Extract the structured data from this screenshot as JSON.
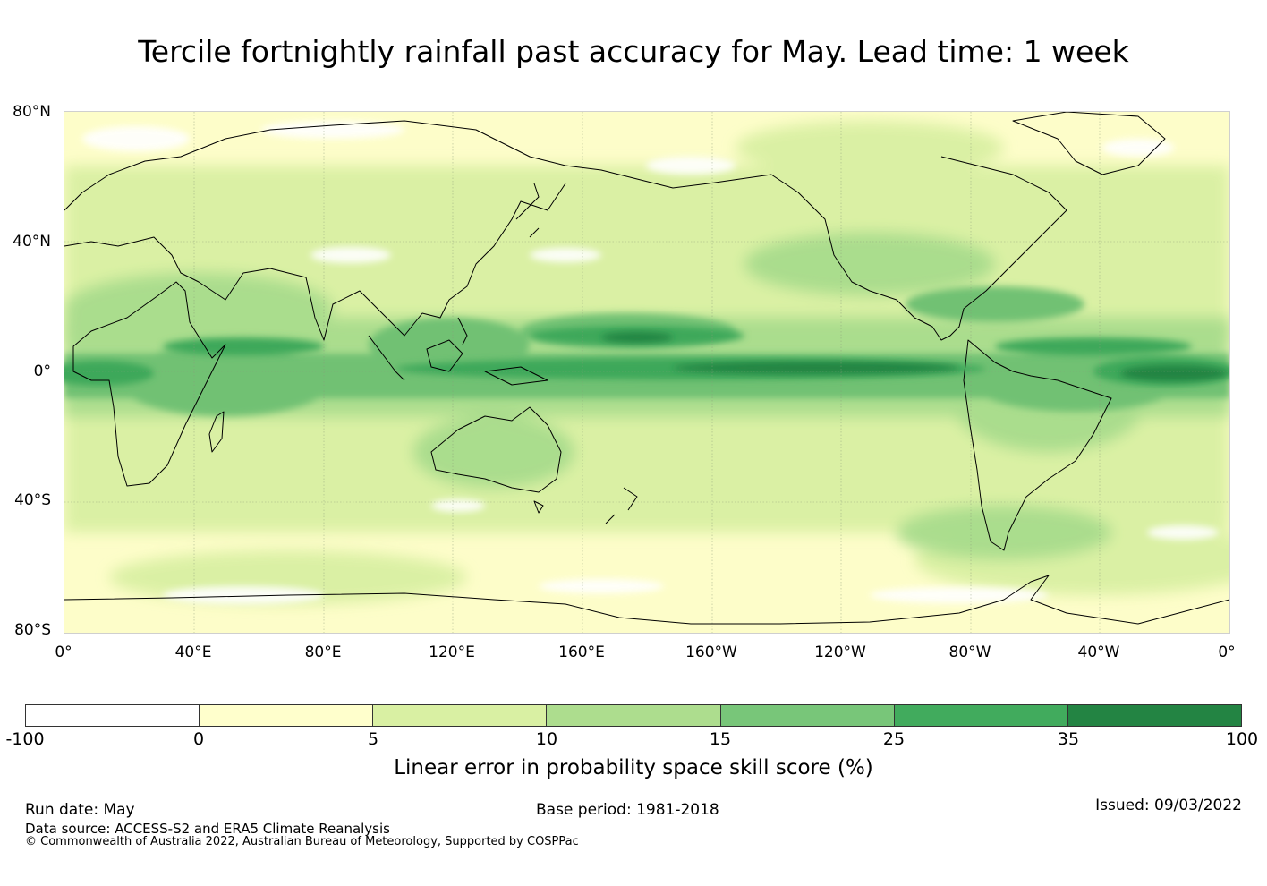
{
  "title": "Tercile fortnightly rainfall past accuracy for May. Lead time: 1 week",
  "map": {
    "lat_labels": [
      "80°N",
      "40°N",
      "0°",
      "40°S",
      "80°S"
    ],
    "lon_labels": [
      "0°",
      "40°E",
      "80°E",
      "120°E",
      "160°E",
      "160°W",
      "120°W",
      "80°W",
      "40°W",
      "0°"
    ],
    "colors": {
      "ocean_base": "#fdfdc9",
      "low": "#d7efa0",
      "mid": "#a8dc8c",
      "high": "#71c173",
      "very_high": "#3ea85a",
      "max": "#238443",
      "coast": "#000000"
    }
  },
  "colorbar": {
    "ticks": [
      "-100",
      "0",
      "5",
      "10",
      "15",
      "25",
      "35",
      "100"
    ],
    "colors": [
      "#ffffff",
      "#ffffcc",
      "#d9f0a3",
      "#addd8e",
      "#78c679",
      "#41ab5d",
      "#238443"
    ],
    "label": "Linear error in probability space skill score (%)"
  },
  "footer": {
    "run_date": "Run date: May",
    "base_period": "Base period: 1981-2018",
    "issued": "Issued: 09/03/2022",
    "data_source": "Data source: ACCESS-S2 and ERA5 Climate Reanalysis",
    "copyright": "© Commonwealth of Australia 2022, Australian Bureau of Meteorology, Supported by COSPPac"
  }
}
